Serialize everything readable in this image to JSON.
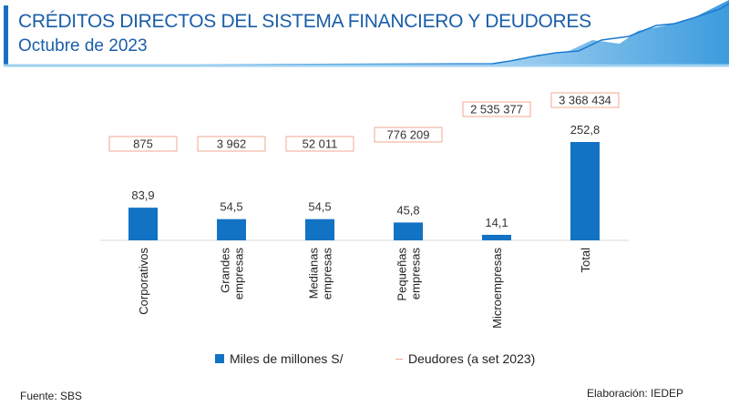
{
  "header": {
    "title": "CRÉDITOS DIRECTOS DEL SISTEMA FINANCIERO Y DEUDORES",
    "subtitle": "Octubre de 2023"
  },
  "chart_data": {
    "type": "bar",
    "categories": [
      [
        "Corporativos"
      ],
      [
        "Grandes",
        "empresas"
      ],
      [
        "Medianas",
        "empresas"
      ],
      [
        "Pequeñas",
        "empresas"
      ],
      [
        "Microempresas"
      ],
      [
        "Total"
      ]
    ],
    "series": [
      {
        "name": "Miles de millones S/",
        "values": [
          83.9,
          54.5,
          54.5,
          45.8,
          14.1,
          252.8
        ],
        "labels": [
          "83,9",
          "54,5",
          "54,5",
          "45,8",
          "14,1",
          "252,8"
        ],
        "color": "#1272c4"
      },
      {
        "name": "Deudores (a set 2023)",
        "values": [
          875,
          3962,
          52011,
          776209,
          2535377,
          3368434
        ],
        "labels": [
          "875",
          "3 962",
          "52 011",
          "776 209",
          "2 535 377",
          "3 368 434"
        ],
        "color": "#f0a890"
      }
    ],
    "legend": "bottom"
  },
  "footer": {
    "source": "Fuente: SBS",
    "credit": "Elaboración: IEDEP"
  }
}
